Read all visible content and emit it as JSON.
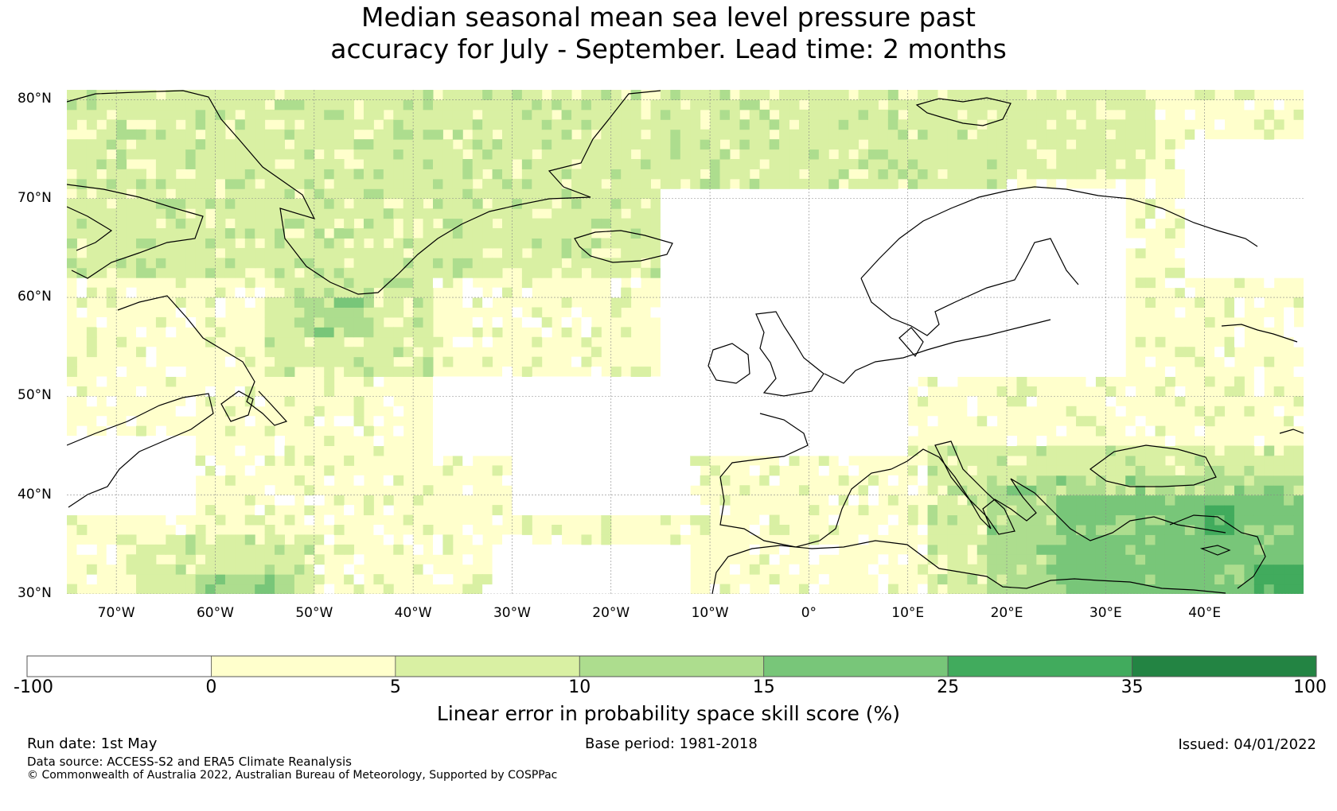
{
  "title_lines": [
    "Median seasonal mean sea level pressure past",
    "accuracy for July - September. Lead time: 2 months"
  ],
  "map": {
    "lat_labels": [
      "80°N",
      "70°N",
      "60°N",
      "50°N",
      "40°N",
      "30°N"
    ],
    "lon_labels": [
      "70°W",
      "60°W",
      "50°W",
      "40°W",
      "30°W",
      "20°W",
      "10°W",
      "0°",
      "10°E",
      "20°E",
      "30°E",
      "40°E"
    ],
    "lon_range": [
      -75,
      50
    ],
    "lat_range": [
      30,
      81
    ]
  },
  "colorbar": {
    "ticks": [
      "-100",
      "0",
      "5",
      "10",
      "15",
      "25",
      "35",
      "100"
    ],
    "colors": [
      "#ffffff",
      "#ffffcc",
      "#d9f0a3",
      "#addd8e",
      "#78c679",
      "#41ab5d",
      "#238443"
    ],
    "label": "Linear error in probability space skill score (%)"
  },
  "footer": {
    "run_date": "Run date: 1st May",
    "base_period": "Base period: 1981-2018",
    "issued": "Issued: 04/01/2022",
    "data_source": "Data source: ACCESS-S2 and ERA5 Climate Reanalysis",
    "copyright": "© Commonwealth of Australia 2022, Australian Bureau of Meteorology, Supported by COSPPac"
  }
}
